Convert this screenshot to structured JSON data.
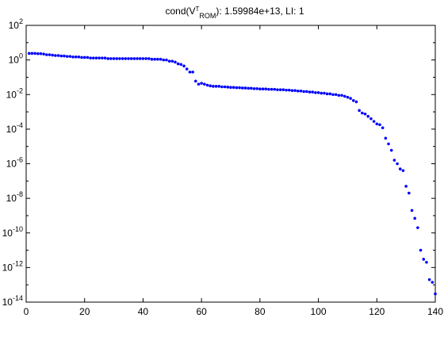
{
  "chart_data": {
    "type": "scatter",
    "title": {
      "prefix": "cond(V",
      "superscript": "T",
      "subscript": "ROM",
      "suffix": "): 1.59984e+13,  LI: 1"
    },
    "xlabel": "",
    "ylabel": "",
    "xlim": [
      0,
      140
    ],
    "ylim": [
      1e-14,
      100
    ],
    "yscale": "log",
    "grid": false,
    "legend": "none",
    "x_ticks": [
      0,
      20,
      40,
      60,
      80,
      100,
      120,
      140
    ],
    "y_tick_exponents": [
      2,
      0,
      -2,
      -4,
      -6,
      -8,
      -10,
      -12,
      -14
    ],
    "y_tick_base": "10",
    "marker_color": "#0000ff",
    "series": [
      {
        "x": [
          1,
          2,
          3,
          4,
          5,
          6,
          7,
          8,
          9,
          10,
          11,
          12,
          13,
          14,
          15,
          16,
          17,
          18,
          19,
          20,
          21,
          22,
          23,
          24,
          25,
          26,
          27,
          28,
          29,
          30,
          31,
          32,
          33,
          34,
          35,
          36,
          37,
          38,
          39,
          40,
          41,
          42,
          43,
          44,
          45,
          46,
          47,
          48,
          49,
          50,
          51,
          52,
          53,
          54,
          55,
          56,
          57,
          58,
          59,
          60,
          61,
          62,
          63,
          64,
          65,
          66,
          67,
          68,
          69,
          70,
          71,
          72,
          73,
          74,
          75,
          76,
          77,
          78,
          79,
          80,
          81,
          82,
          83,
          84,
          85,
          86,
          87,
          88,
          89,
          90,
          91,
          92,
          93,
          94,
          95,
          96,
          97,
          98,
          99,
          100,
          101,
          102,
          103,
          104,
          105,
          106,
          107,
          108,
          109,
          110,
          111,
          112,
          113,
          114,
          115,
          116,
          117,
          118,
          119,
          120,
          121,
          122,
          123,
          124,
          125,
          126,
          127,
          128,
          129,
          130,
          131,
          132,
          133,
          134,
          135,
          136,
          137,
          138,
          139,
          140
        ],
        "y": [
          2.4,
          2.4,
          2.4,
          2.3,
          2.3,
          2.2,
          2.0,
          2.0,
          1.9,
          1.8,
          1.8,
          1.7,
          1.7,
          1.6,
          1.6,
          1.5,
          1.5,
          1.5,
          1.4,
          1.4,
          1.4,
          1.3,
          1.3,
          1.3,
          1.3,
          1.3,
          1.3,
          1.2,
          1.2,
          1.2,
          1.2,
          1.2,
          1.2,
          1.2,
          1.2,
          1.2,
          1.2,
          1.2,
          1.2,
          1.2,
          1.2,
          1.2,
          1.1,
          1.1,
          1.1,
          1.1,
          1.0,
          1.0,
          0.85,
          0.85,
          0.75,
          0.6,
          0.55,
          0.45,
          0.3,
          0.2,
          0.2,
          0.06,
          0.04,
          0.045,
          0.04,
          0.035,
          0.032,
          0.03,
          0.03,
          0.03,
          0.028,
          0.028,
          0.027,
          0.026,
          0.026,
          0.025,
          0.025,
          0.024,
          0.024,
          0.023,
          0.023,
          0.022,
          0.022,
          0.021,
          0.021,
          0.021,
          0.02,
          0.02,
          0.02,
          0.019,
          0.019,
          0.019,
          0.018,
          0.018,
          0.017,
          0.017,
          0.016,
          0.016,
          0.015,
          0.015,
          0.014,
          0.014,
          0.013,
          0.013,
          0.012,
          0.012,
          0.011,
          0.011,
          0.01,
          0.01,
          0.009,
          0.009,
          0.008,
          0.007,
          0.006,
          0.0045,
          0.0038,
          0.0012,
          0.00085,
          0.00075,
          0.00055,
          0.0004,
          0.00028,
          0.0002,
          0.00018,
          0.00012,
          3e-05,
          1.4e-05,
          6e-06,
          1.6e-06,
          1e-06,
          5e-07,
          4e-07,
          5e-08,
          2e-08,
          2e-09,
          7e-10,
          2e-10,
          1e-11,
          3e-12,
          2e-12,
          2e-13,
          1.4e-13,
          3e-14
        ]
      }
    ]
  }
}
